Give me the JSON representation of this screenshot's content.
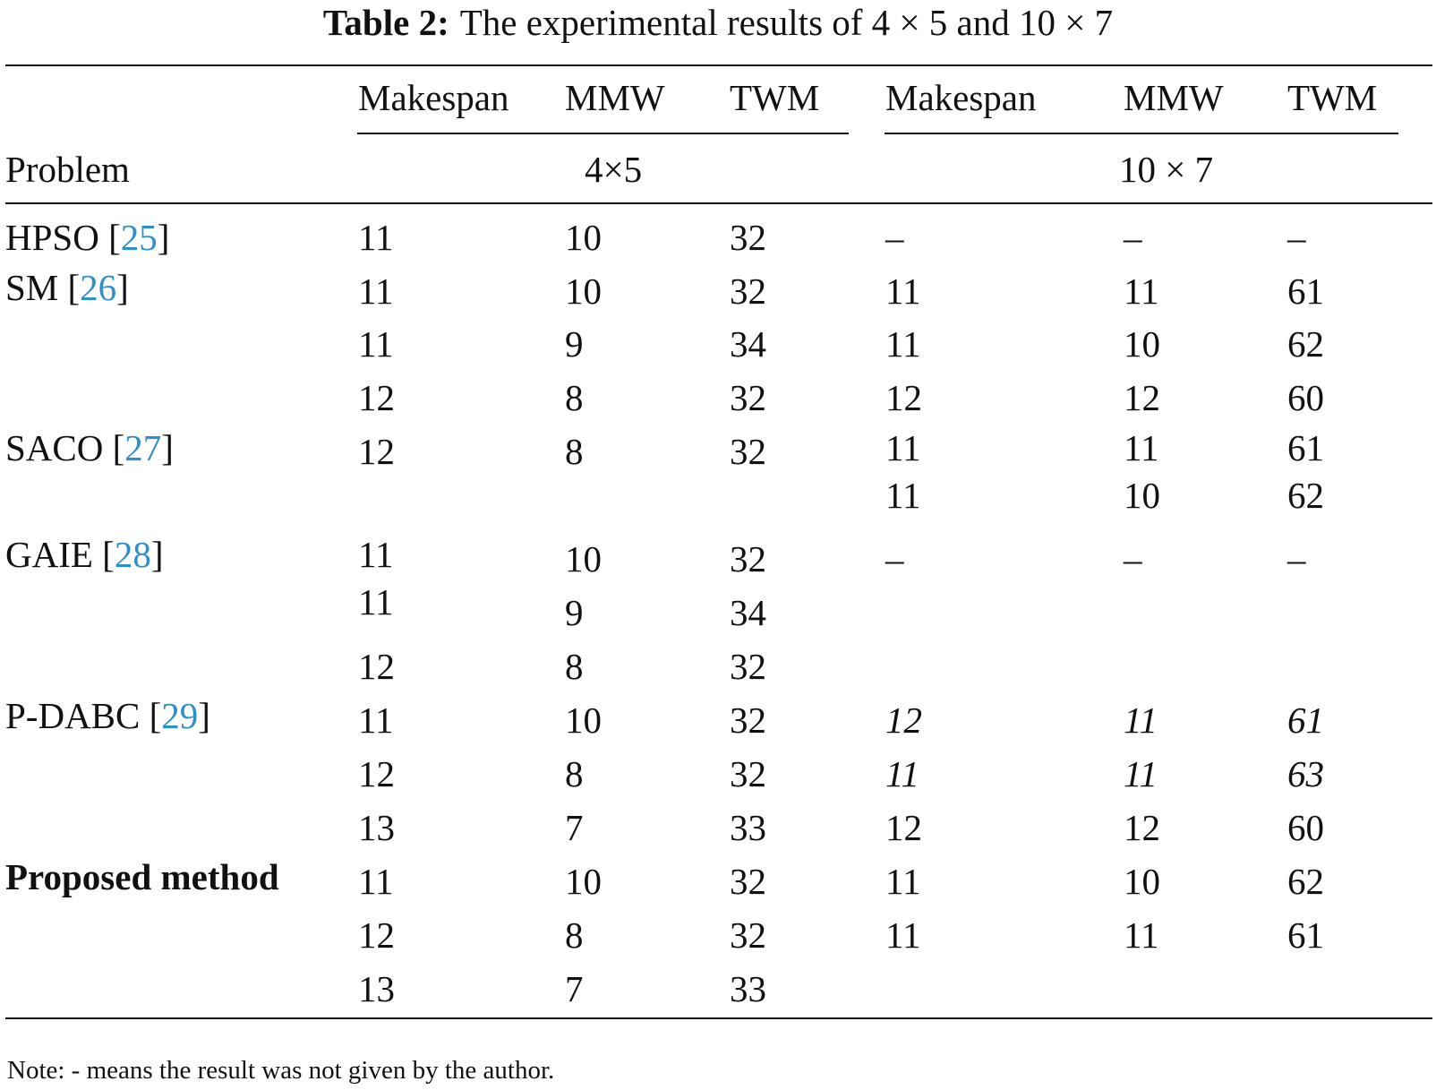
{
  "caption": {
    "label": "Table 2:",
    "text": "The experimental results of 4 × 5 and 10 × 7"
  },
  "header": {
    "row_label": "Problem",
    "group1": "4×5",
    "group2": "10 × 7",
    "columns": [
      "Makespan",
      "MMW",
      "TWM",
      "Makespan",
      "MMW",
      "TWM"
    ]
  },
  "methods": [
    {
      "name": "HPSO",
      "ref": "25"
    },
    {
      "name": "SM",
      "ref": "26"
    },
    {
      "name": "SACO",
      "ref": "27"
    },
    {
      "name": "GAIE",
      "ref": "28"
    },
    {
      "name": "P-DABC",
      "ref": "29"
    },
    {
      "name": "Proposed method",
      "ref": ""
    }
  ],
  "rows": [
    [
      "11",
      "10",
      "32",
      "–",
      "–",
      "–"
    ],
    [
      "11",
      "10",
      "32",
      "11",
      "11",
      "61"
    ],
    [
      "11",
      "9",
      "34",
      "11",
      "10",
      "62"
    ],
    [
      "12",
      "8",
      "32",
      "12",
      "12",
      "60"
    ],
    [
      "12",
      "8",
      "32",
      "11",
      "11",
      "61"
    ],
    [
      "",
      "",
      "",
      "11",
      "10",
      "62"
    ],
    [
      "11",
      "10",
      "32",
      "–",
      "–",
      "–"
    ],
    [
      "11",
      "9",
      "34",
      "",
      "",
      ""
    ],
    [
      "12",
      "8",
      "32",
      "",
      "",
      ""
    ],
    [
      "11",
      "10",
      "32",
      "12",
      "11",
      "61"
    ],
    [
      "12",
      "8",
      "32",
      "11",
      "11",
      "63"
    ],
    [
      "13",
      "7",
      "33",
      "12",
      "12",
      "60"
    ],
    [
      "11",
      "10",
      "32",
      "11",
      "10",
      "62"
    ],
    [
      "12",
      "8",
      "32",
      "11",
      "11",
      "61"
    ],
    [
      "13",
      "7",
      "33",
      "",
      "",
      ""
    ]
  ],
  "note": "Note: - means the result was not given by the author."
}
